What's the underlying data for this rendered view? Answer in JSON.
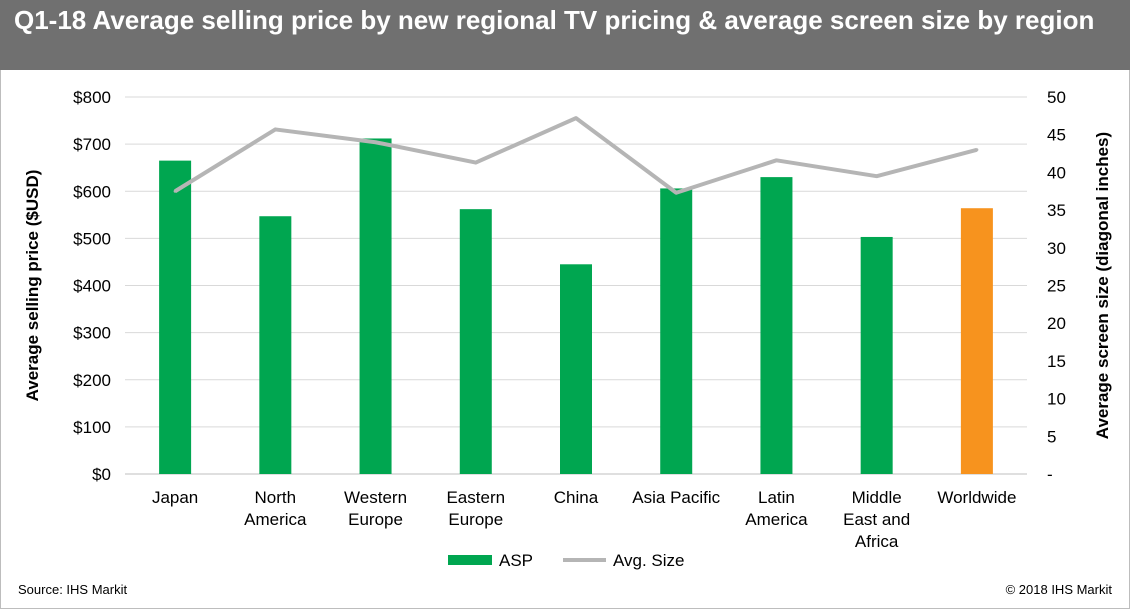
{
  "title": "Q1-18 Average selling price by new regional TV pricing & average screen size by region",
  "source": "Source: IHS Markit",
  "copyright": "© 2018 IHS Markit",
  "colors": {
    "asp": "#00a650",
    "asp_highlight": "#f7931e",
    "avg_size": "#b5b5b5",
    "title_bg": "#707070"
  },
  "chart_data": {
    "type": "bar",
    "categories": [
      [
        "Japan"
      ],
      [
        "North",
        "America"
      ],
      [
        "Western",
        "Europe"
      ],
      [
        "Eastern",
        "Europe"
      ],
      [
        "China"
      ],
      [
        "Asia Pacific"
      ],
      [
        "Latin",
        "America"
      ],
      [
        "Middle",
        "East and",
        "Africa"
      ],
      [
        "Worldwide"
      ]
    ],
    "series": [
      {
        "name": "ASP",
        "type": "bar",
        "axis": "left",
        "values": [
          665,
          547,
          712,
          562,
          445,
          606,
          630,
          503,
          564
        ]
      },
      {
        "name": "Avg. Size",
        "type": "line",
        "axis": "right",
        "values": [
          37.5,
          45.7,
          44.0,
          41.3,
          47.2,
          37.3,
          41.6,
          39.5,
          43.0
        ]
      }
    ],
    "highlight_index": 8,
    "ylabel": "Average selling price ($USD)",
    "y2label": "Average screen size (diagonal inches)",
    "ylim": [
      0,
      800
    ],
    "y2lim": [
      0,
      50
    ],
    "yticks": [
      "$0",
      "$100",
      "$200",
      "$300",
      "$400",
      "$500",
      "$600",
      "$700",
      "$800"
    ],
    "y2ticks": [
      "-",
      "5",
      "10",
      "15",
      "20",
      "25",
      "30",
      "35",
      "40",
      "45",
      "50"
    ],
    "grid": true,
    "legend_position": "bottom"
  }
}
